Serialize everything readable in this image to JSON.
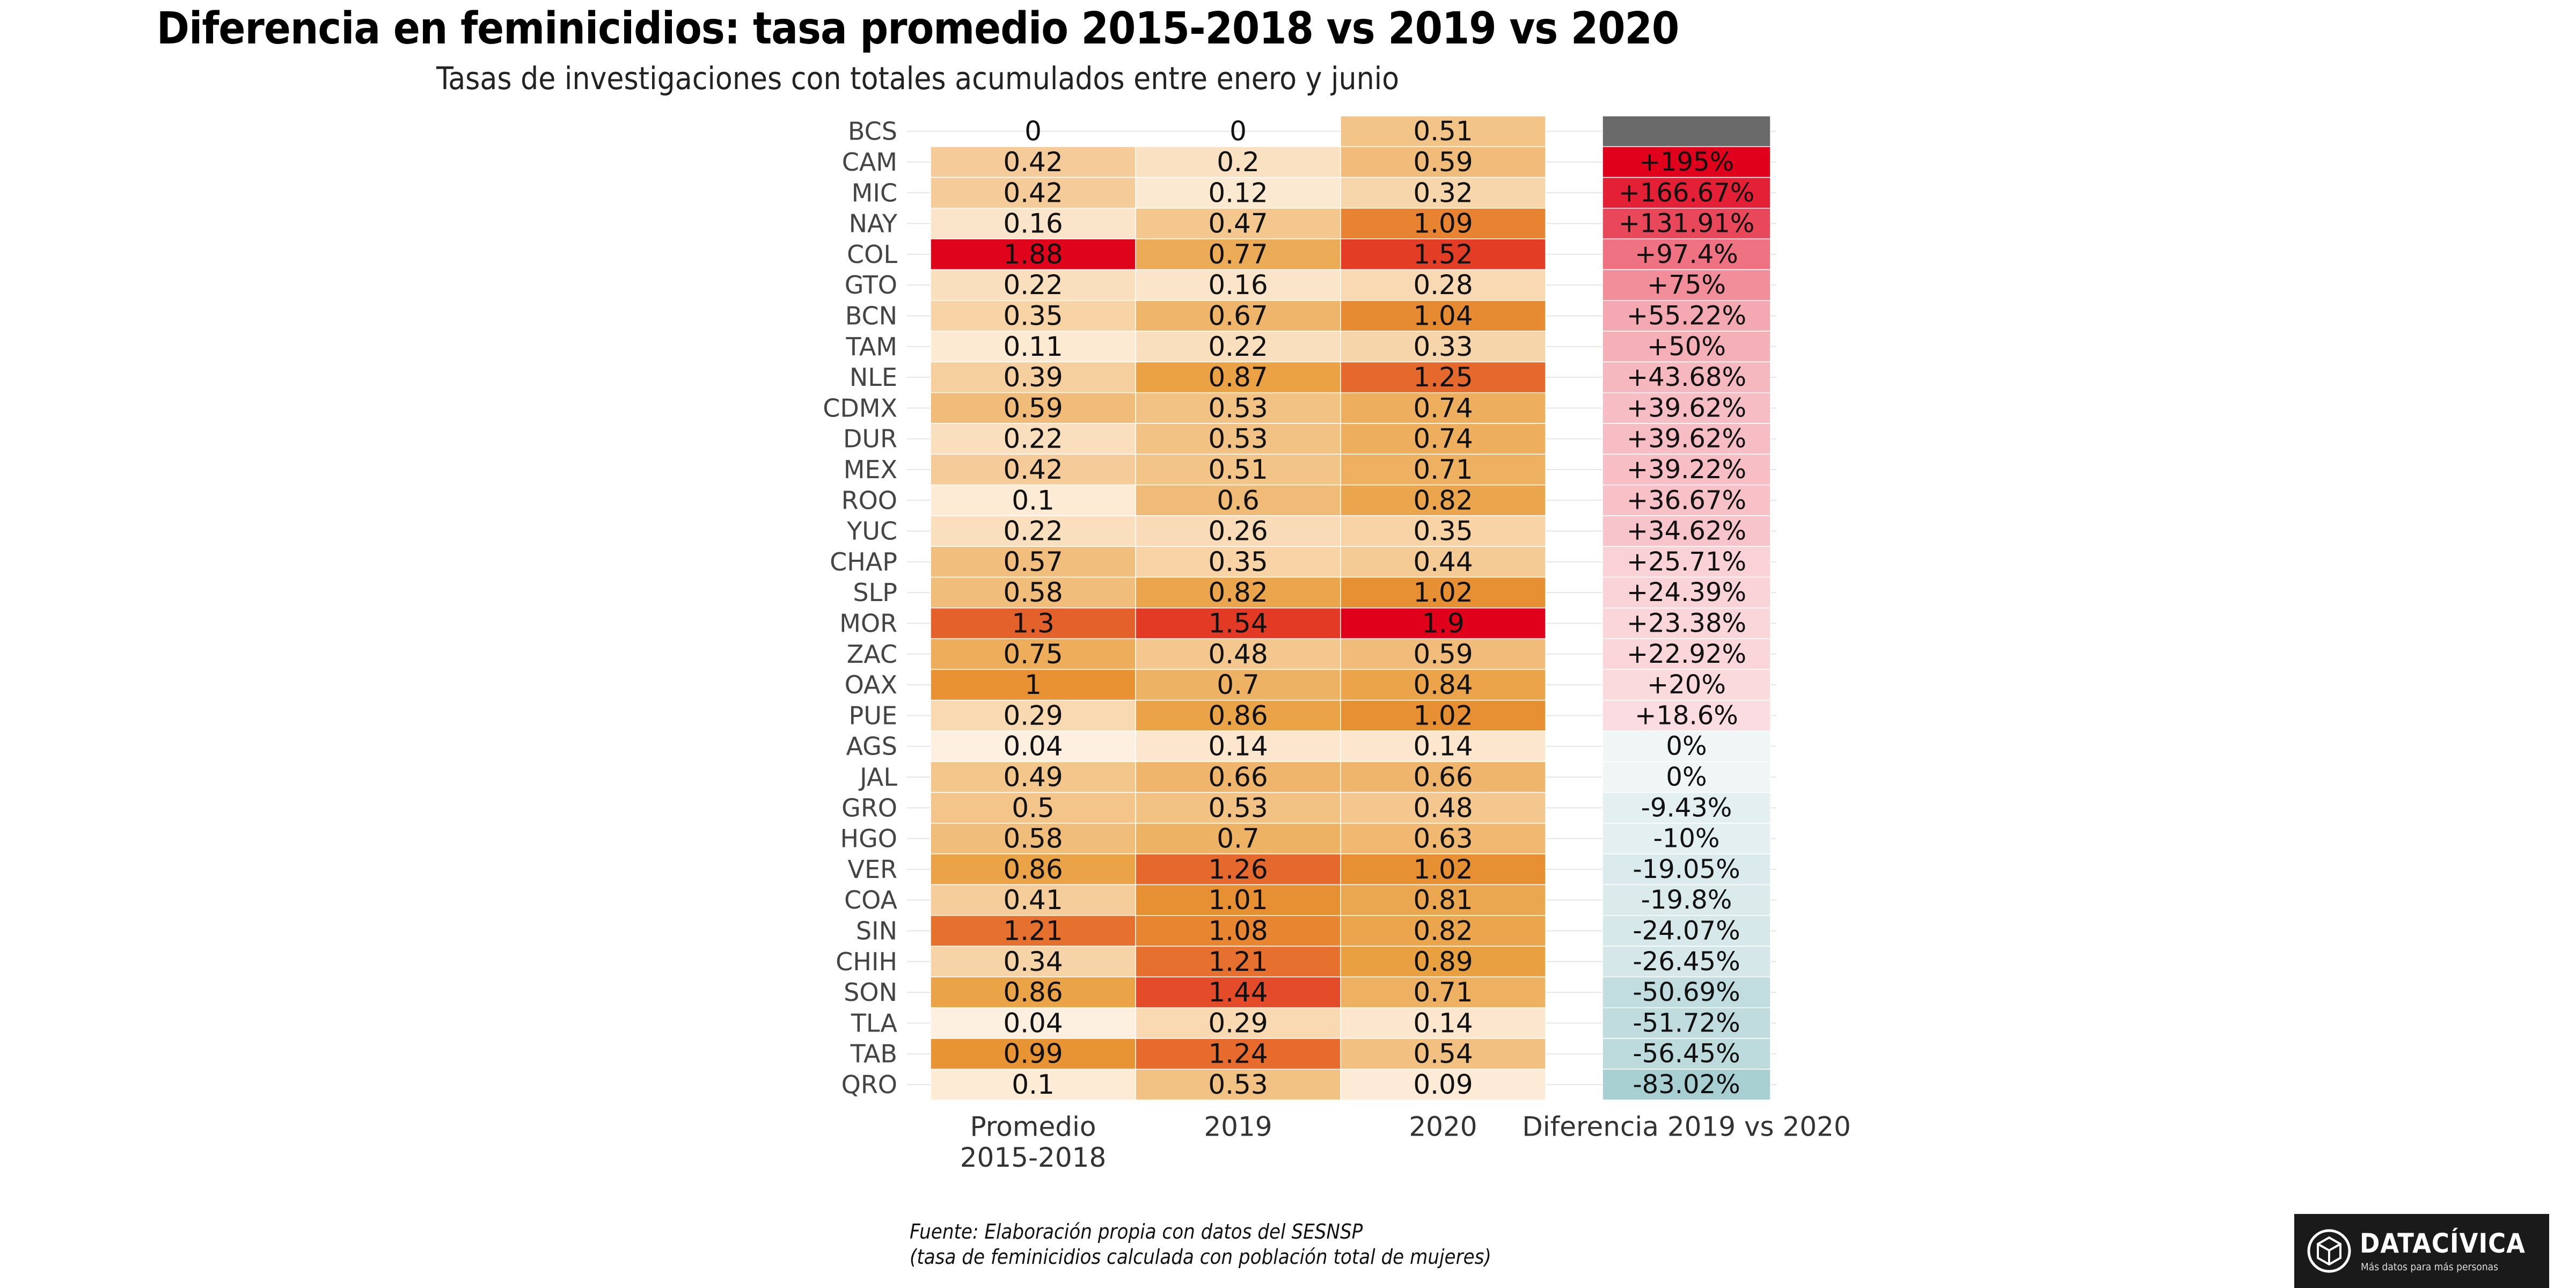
{
  "title": "Diferencia en feminicidios: tasa promedio 2015-2018 vs 2019 vs 2020",
  "subtitle": "Tasas de investigaciones con totales acumulados entre enero y junio",
  "source_lines": [
    "Fuente: Elaboración propia con datos del SESNSP",
    "(tasa de feminicidios calculada con población total de mujeres)"
  ],
  "logo": {
    "name": "DATACÍVICA",
    "tagline": "Más datos para más personas",
    "icon": "datacivica-cube-icon"
  },
  "colors": {
    "rate_low": "#fff4e8",
    "rate_mid": "#e89a35",
    "rate_high": "#e0001b",
    "diff_neg": "#a8d0d2",
    "diff_pos": "#e0001b",
    "diff_na": "#6a6a6a"
  },
  "chart_data": {
    "type": "heatmap",
    "title": "Diferencia en feminicidios: tasa promedio 2015-2018 vs 2019 vs 2020",
    "subtitle": "Tasas de investigaciones con totales acumulados entre enero y junio",
    "columns": [
      "Promedio 2015-2018",
      "2019",
      "2020"
    ],
    "diff_column": "Diferencia 2019 vs 2020",
    "rows": [
      {
        "state": "BCS",
        "v": [
          0,
          0,
          0.51
        ],
        "diff": ""
      },
      {
        "state": "CAM",
        "v": [
          0.42,
          0.2,
          0.59
        ],
        "diff": "+195%"
      },
      {
        "state": "MIC",
        "v": [
          0.42,
          0.12,
          0.32
        ],
        "diff": "+166.67%"
      },
      {
        "state": "NAY",
        "v": [
          0.16,
          0.47,
          1.09
        ],
        "diff": "+131.91%"
      },
      {
        "state": "COL",
        "v": [
          1.88,
          0.77,
          1.52
        ],
        "diff": "+97.4%"
      },
      {
        "state": "GTO",
        "v": [
          0.22,
          0.16,
          0.28
        ],
        "diff": "+75%"
      },
      {
        "state": "BCN",
        "v": [
          0.35,
          0.67,
          1.04
        ],
        "diff": "+55.22%"
      },
      {
        "state": "TAM",
        "v": [
          0.11,
          0.22,
          0.33
        ],
        "diff": "+50%"
      },
      {
        "state": "NLE",
        "v": [
          0.39,
          0.87,
          1.25
        ],
        "diff": "+43.68%"
      },
      {
        "state": "CDMX",
        "v": [
          0.59,
          0.53,
          0.74
        ],
        "diff": "+39.62%"
      },
      {
        "state": "DUR",
        "v": [
          0.22,
          0.53,
          0.74
        ],
        "diff": "+39.62%"
      },
      {
        "state": "MEX",
        "v": [
          0.42,
          0.51,
          0.71
        ],
        "diff": "+39.22%"
      },
      {
        "state": "ROO",
        "v": [
          0.1,
          0.6,
          0.82
        ],
        "diff": "+36.67%"
      },
      {
        "state": "YUC",
        "v": [
          0.22,
          0.26,
          0.35
        ],
        "diff": "+34.62%"
      },
      {
        "state": "CHAP",
        "v": [
          0.57,
          0.35,
          0.44
        ],
        "diff": "+25.71%"
      },
      {
        "state": "SLP",
        "v": [
          0.58,
          0.82,
          1.02
        ],
        "diff": "+24.39%"
      },
      {
        "state": "MOR",
        "v": [
          1.3,
          1.54,
          1.9
        ],
        "diff": "+23.38%"
      },
      {
        "state": "ZAC",
        "v": [
          0.75,
          0.48,
          0.59
        ],
        "diff": "+22.92%"
      },
      {
        "state": "OAX",
        "v": [
          1,
          0.7,
          0.84
        ],
        "diff": "+20%"
      },
      {
        "state": "PUE",
        "v": [
          0.29,
          0.86,
          1.02
        ],
        "diff": "+18.6%"
      },
      {
        "state": "AGS",
        "v": [
          0.04,
          0.14,
          0.14
        ],
        "diff": "0%"
      },
      {
        "state": "JAL",
        "v": [
          0.49,
          0.66,
          0.66
        ],
        "diff": "0%"
      },
      {
        "state": "GRO",
        "v": [
          0.5,
          0.53,
          0.48
        ],
        "diff": "-9.43%"
      },
      {
        "state": "HGO",
        "v": [
          0.58,
          0.7,
          0.63
        ],
        "diff": "-10%"
      },
      {
        "state": "VER",
        "v": [
          0.86,
          1.26,
          1.02
        ],
        "diff": "-19.05%"
      },
      {
        "state": "COA",
        "v": [
          0.41,
          1.01,
          0.81
        ],
        "diff": "-19.8%"
      },
      {
        "state": "SIN",
        "v": [
          1.21,
          1.08,
          0.82
        ],
        "diff": "-24.07%"
      },
      {
        "state": "CHIH",
        "v": [
          0.34,
          1.21,
          0.89
        ],
        "diff": "-26.45%"
      },
      {
        "state": "SON",
        "v": [
          0.86,
          1.44,
          0.71
        ],
        "diff": "-50.69%"
      },
      {
        "state": "TLA",
        "v": [
          0.04,
          0.29,
          0.14
        ],
        "diff": "-51.72%"
      },
      {
        "state": "TAB",
        "v": [
          0.99,
          1.24,
          0.54
        ],
        "diff": "-56.45%"
      },
      {
        "state": "QRO",
        "v": [
          0.1,
          0.53,
          0.09
        ],
        "diff": "-83.02%"
      }
    ]
  }
}
